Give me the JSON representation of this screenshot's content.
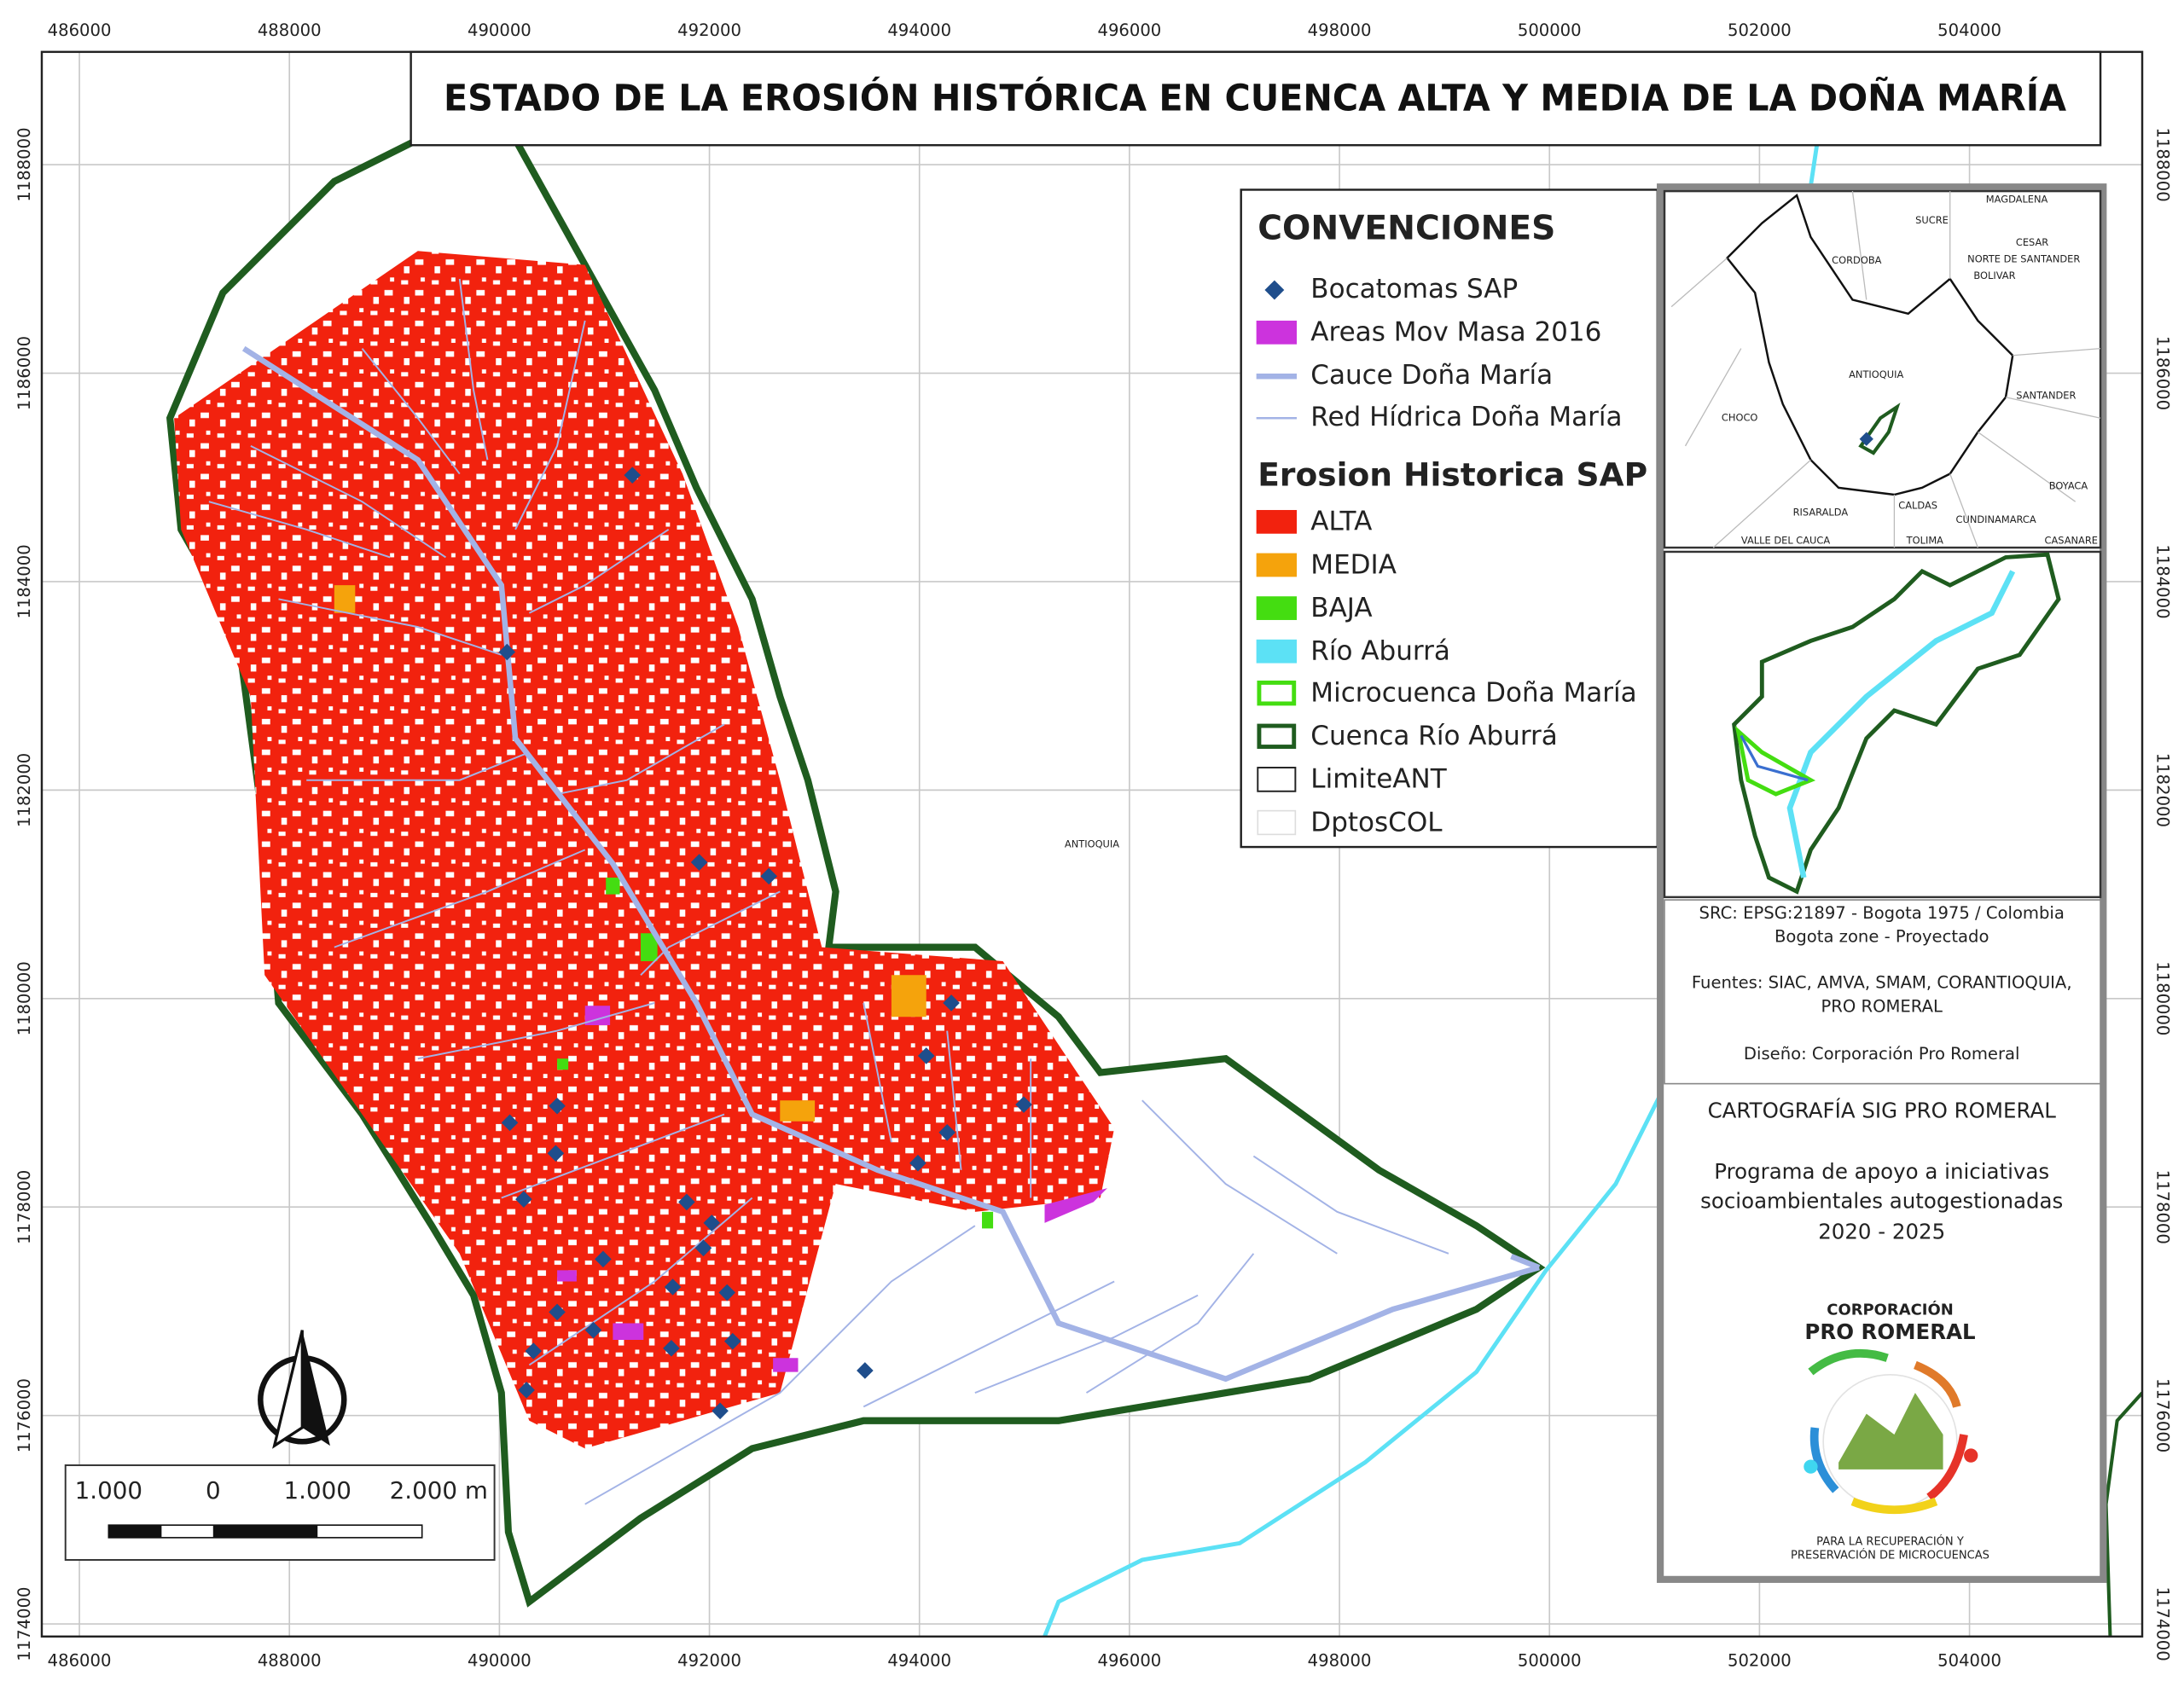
{
  "title": "ESTADO DE LA EROSIÓN HISTÓRICA EN CUENCA ALTA Y MEDIA DE LA DOÑA MARÍA",
  "x_ticks": [
    486000,
    488000,
    490000,
    492000,
    494000,
    496000,
    498000,
    500000,
    502000,
    504000
  ],
  "y_ticks": [
    1174000,
    1176000,
    1178000,
    1180000,
    1182000,
    1184000,
    1186000,
    1188000
  ],
  "map_label": "ANTIOQUIA",
  "legend": {
    "title": "CONVENCIONES",
    "items": [
      "Bocatomas SAP",
      "Areas Mov Masa 2016",
      "Cauce Doña María",
      "Red Hídrica Doña María"
    ],
    "erosion_title": "Erosion Historica SAP",
    "erosion_items": [
      "ALTA",
      "MEDIA",
      "BAJA",
      "Río Aburrá",
      "Microcuenca Doña María",
      "Cuenca Río Aburrá",
      "LimiteANT",
      "DptosCOL"
    ]
  },
  "scale_bar": [
    "1.000",
    "0",
    "1.000",
    "2.000 m"
  ],
  "inset_labels": [
    "MAGDALENA",
    "SUCRE",
    "CESAR",
    "CORDOBA",
    "NORTE DE SANTANDER",
    "BOLIVAR",
    "ANTIOQUIA",
    "SANTANDER",
    "CHOCO",
    "BOYACA",
    "CALDAS",
    "RISARALDA",
    "CUNDINAMARCA",
    "VALLE DEL CAUCA",
    "TOLIMA",
    "CASANARE"
  ],
  "info": {
    "src": [
      "SRC: EPSG:21897 - Bogota 1975 / Colombia",
      "Bogota zone - Proyectado"
    ],
    "sources": [
      "Fuentes: SIAC, AMVA, SMAM, CORANTIOQUIA,",
      "PRO ROMERAL"
    ],
    "design": "Diseño: Corporación Pro Romeral"
  },
  "credits": {
    "title": "CARTOGRAFÍA SIG PRO ROMERAL",
    "program": [
      "Programa de apoyo a iniciativas",
      "socioambientales autogestionadas",
      "2020 - 2025"
    ]
  },
  "logo": {
    "name_top": "CORPORACIÓN",
    "name": "PRO ROMERAL",
    "tagline": [
      "PARA LA RECUPERACIÓN Y",
      "PRESERVACIÓN DE MICROCUENCAS"
    ]
  }
}
